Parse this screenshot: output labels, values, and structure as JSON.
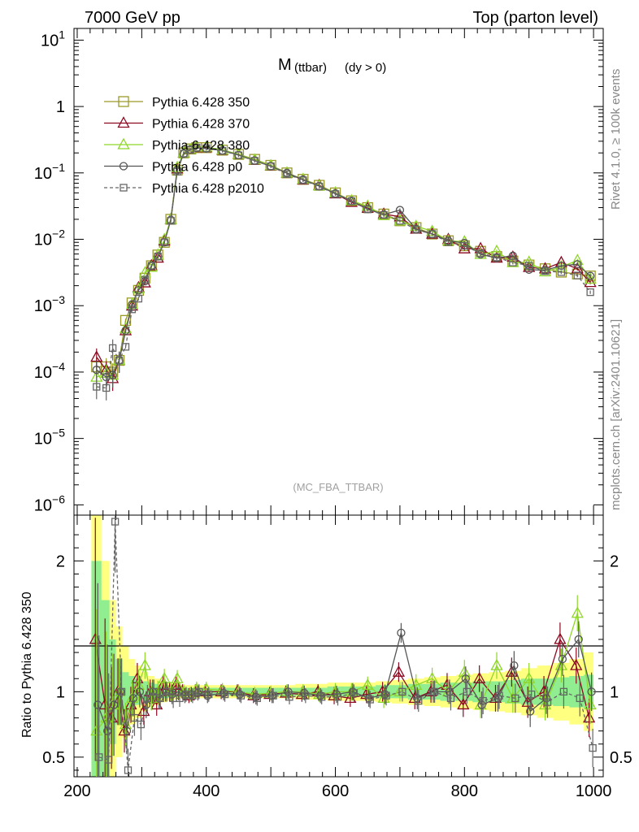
{
  "header": {
    "left": "7000 GeV pp",
    "right": "Top (parton level)"
  },
  "plot_title": {
    "main": "M",
    "sub": "(ttbar)",
    "cut": "(dy > 0)"
  },
  "watermark": "(MC_FBA_TTBAR)",
  "side_text": {
    "rivet": "Rivet 4.1.0, ≥ 100k events",
    "mcplots": "mcplots.cern.ch [arXiv:2401.10621]"
  },
  "colors": {
    "s350": "#9a9a2a",
    "s370": "#8b0a22",
    "s380": "#8fd62a",
    "p0": "#555555",
    "p2010": "#666666",
    "band_green": "#90ee90",
    "band_yellow": "#ffff80"
  },
  "chart_data": {
    "type": "line",
    "title": "M (ttbar) (dy > 0)",
    "xlabel": "",
    "ylabel_upper": "",
    "ylabel_lower": "Ratio to Pythia 6.428 350",
    "xlim": [
      195,
      1015
    ],
    "ylim_upper": [
      7e-07,
      15
    ],
    "yscale_upper": "log",
    "ylim_lower": [
      0.35,
      2.35
    ],
    "x_ticks": [
      "200",
      "400",
      "600",
      "800",
      "1000"
    ],
    "y_ticks_upper": [
      {
        "base": "10",
        "exp": "1",
        "value": 10
      },
      {
        "base": "1",
        "exp": "",
        "value": 1
      },
      {
        "base": "10",
        "exp": "−1",
        "value": 0.1
      },
      {
        "base": "10",
        "exp": "−2",
        "value": 0.01
      },
      {
        "base": "10",
        "exp": "−3",
        "value": 0.001
      },
      {
        "base": "10",
        "exp": "−4",
        "value": 0.0001
      },
      {
        "base": "10",
        "exp": "−5",
        "value": 1e-05
      },
      {
        "base": "10",
        "exp": "−6",
        "value": 1e-06
      }
    ],
    "y_ticks_lower": [
      "0.5",
      "1",
      "2"
    ],
    "legend_position": "top-left",
    "series": [
      {
        "key": "s350",
        "name": "Pythia 6.428 350",
        "marker": "square",
        "dashed": false
      },
      {
        "key": "s370",
        "name": "Pythia 6.428 370",
        "marker": "triangle",
        "dashed": false
      },
      {
        "key": "s380",
        "name": "Pythia 6.428 380",
        "marker": "triangle",
        "dashed": false
      },
      {
        "key": "p0",
        "name": "Pythia 6.428 p0",
        "marker": "circle",
        "dashed": false
      },
      {
        "key": "p2010",
        "name": "Pythia 6.428 p2010",
        "marker": "open-square",
        "dashed": true
      }
    ],
    "x": [
      230,
      245,
      255,
      265,
      275,
      285,
      295,
      305,
      315,
      325,
      335,
      345,
      355,
      365,
      375,
      385,
      400,
      425,
      450,
      475,
      500,
      525,
      550,
      575,
      600,
      625,
      650,
      675,
      700,
      725,
      750,
      775,
      800,
      825,
      850,
      875,
      900,
      925,
      950,
      975,
      995
    ],
    "reference_values": [
      0.00012,
      0.00012,
      0.0001,
      0.00015,
      0.0006,
      0.0011,
      0.0017,
      0.0026,
      0.004,
      0.0058,
      0.009,
      0.02,
      0.11,
      0.2,
      0.23,
      0.24,
      0.24,
      0.22,
      0.19,
      0.16,
      0.13,
      0.1,
      0.08,
      0.065,
      0.05,
      0.038,
      0.03,
      0.024,
      0.019,
      0.015,
      0.012,
      0.0095,
      0.008,
      0.0066,
      0.0055,
      0.0047,
      0.0041,
      0.0036,
      0.0032,
      0.003,
      0.0028
    ],
    "ratios": {
      "s350": [
        1,
        1,
        1,
        1,
        1,
        1,
        1,
        1,
        1,
        1,
        1,
        1,
        1,
        1,
        1,
        1,
        1,
        1,
        1,
        1,
        1,
        1,
        1,
        1,
        1,
        1,
        1,
        1,
        1,
        1,
        1,
        1,
        1,
        1,
        1,
        1,
        1,
        1,
        1,
        1,
        1
      ],
      "s370": [
        1.4,
        0.9,
        0.8,
        1.0,
        0.7,
        0.9,
        1.1,
        0.85,
        1.0,
        0.9,
        1.05,
        1.0,
        1.05,
        1.0,
        0.97,
        1.0,
        1.0,
        1.0,
        1.0,
        0.97,
        0.98,
        0.99,
        0.98,
        1.0,
        0.97,
        0.95,
        0.98,
        1.0,
        1.15,
        0.95,
        1.0,
        1.05,
        0.9,
        1.1,
        0.95,
        1.15,
        0.92,
        1.0,
        1.4,
        1.2,
        0.8
      ],
      "s380": [
        0.7,
        0.8,
        0.9,
        1.0,
        0.75,
        0.95,
        1.05,
        1.2,
        0.95,
        1.0,
        1.1,
        1.0,
        1.1,
        1.0,
        0.98,
        1.02,
        1.02,
        1.01,
        1.0,
        0.98,
        0.99,
        1.0,
        1.0,
        0.98,
        1.0,
        1.0,
        1.05,
        0.95,
        1.0,
        1.05,
        1.1,
        1.0,
        1.15,
        0.9,
        1.2,
        0.95,
        1.1,
        0.9,
        1.2,
        1.6,
        0.9
      ],
      "p0": [
        0.9,
        0.7,
        0.9,
        1.0,
        0.7,
        0.95,
        1.0,
        0.9,
        1.0,
        0.95,
        1.0,
        0.98,
        1.0,
        0.97,
        0.98,
        0.99,
        0.97,
        0.99,
        0.98,
        0.96,
        0.97,
        1.0,
        0.99,
        0.97,
        0.98,
        1.0,
        0.95,
        0.98,
        1.45,
        0.95,
        1.0,
        1.0,
        1.1,
        0.9,
        0.95,
        1.2,
        0.85,
        0.95,
        1.25,
        1.4,
        1.0
      ],
      "p2010": [
        0.5,
        0.48,
        2.3,
        1.0,
        0.4,
        0.8,
        0.75,
        0.95,
        1.0,
        0.95,
        1.0,
        0.95,
        0.95,
        0.98,
        0.97,
        1.0,
        0.98,
        0.98,
        0.97,
        0.95,
        0.97,
        0.96,
        0.97,
        0.96,
        0.96,
        0.99,
        0.94,
        0.97,
        1.0,
        0.93,
        1.0,
        0.95,
        1.0,
        0.93,
        0.97,
        0.95,
        0.98,
        0.92,
        1.0,
        0.95,
        0.57
      ]
    },
    "bands": {
      "green_half_width": [
        1.0,
        0.7,
        0.4,
        0.25,
        0.15,
        0.12,
        0.1,
        0.08,
        0.07,
        0.06,
        0.05,
        0.05,
        0.04,
        0.03,
        0.03,
        0.03,
        0.03,
        0.03,
        0.03,
        0.03,
        0.03,
        0.03,
        0.03,
        0.03,
        0.04,
        0.04,
        0.04,
        0.05,
        0.05,
        0.06,
        0.06,
        0.07,
        0.07,
        0.08,
        0.08,
        0.09,
        0.1,
        0.1,
        0.11,
        0.12,
        0.13
      ],
      "yellow_half_width": [
        1.35,
        1.0,
        0.7,
        0.5,
        0.35,
        0.25,
        0.2,
        0.15,
        0.12,
        0.1,
        0.08,
        0.07,
        0.06,
        0.05,
        0.05,
        0.05,
        0.05,
        0.05,
        0.05,
        0.05,
        0.05,
        0.05,
        0.06,
        0.06,
        0.07,
        0.07,
        0.07,
        0.08,
        0.09,
        0.1,
        0.11,
        0.12,
        0.13,
        0.14,
        0.15,
        0.16,
        0.18,
        0.2,
        0.22,
        0.25,
        0.3
      ]
    }
  }
}
